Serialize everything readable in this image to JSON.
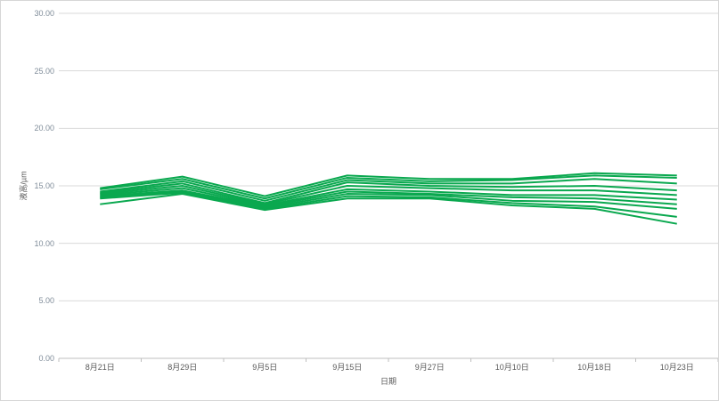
{
  "chart_data": {
    "type": "line",
    "title": "",
    "xlabel": "日期",
    "ylabel": "液高/µm",
    "categories": [
      "8月21日",
      "8月29日",
      "9月5日",
      "9月15日",
      "9月27日",
      "10月10日",
      "10月18日",
      "10月23日"
    ],
    "series": [
      {
        "name": "line-1",
        "values": [
          14.8,
          15.8,
          14.1,
          15.9,
          15.6,
          15.6,
          16.1,
          15.9
        ]
      },
      {
        "name": "line-2",
        "values": [
          14.7,
          15.6,
          13.9,
          15.7,
          15.4,
          15.5,
          15.9,
          15.7
        ]
      },
      {
        "name": "line-3",
        "values": [
          14.5,
          15.4,
          13.7,
          15.5,
          15.2,
          15.2,
          15.6,
          15.2
        ]
      },
      {
        "name": "line-4",
        "values": [
          14.4,
          15.2,
          13.5,
          15.3,
          15.0,
          14.9,
          15.0,
          14.6
        ]
      },
      {
        "name": "line-5",
        "values": [
          14.3,
          15.0,
          13.4,
          15.0,
          14.8,
          14.6,
          14.6,
          14.2
        ]
      },
      {
        "name": "line-6",
        "values": [
          14.2,
          14.8,
          13.3,
          14.7,
          14.5,
          14.2,
          14.2,
          13.8
        ]
      },
      {
        "name": "line-7",
        "values": [
          14.1,
          14.6,
          13.2,
          14.5,
          14.3,
          14.0,
          13.9,
          13.4
        ]
      },
      {
        "name": "line-8",
        "values": [
          14.0,
          14.5,
          13.1,
          14.3,
          14.2,
          13.7,
          13.6,
          13.0
        ]
      },
      {
        "name": "line-9",
        "values": [
          13.9,
          14.4,
          13.0,
          14.1,
          14.0,
          13.5,
          13.2,
          12.3
        ]
      },
      {
        "name": "line-10",
        "values": [
          13.4,
          14.3,
          12.9,
          13.9,
          13.9,
          13.3,
          13.0,
          11.7
        ]
      }
    ],
    "ylim": [
      0,
      30
    ],
    "ytick_step": 5,
    "ytick_labels": [
      "0.00",
      "5.00",
      "10.00",
      "15.00",
      "20.00",
      "25.00",
      "30.00"
    ],
    "grid": true,
    "legend": "none",
    "line_color": "#0aa84f",
    "colors": {
      "gridline": "#d9d9d9",
      "axis_line": "#bfbfbf",
      "y_tick_label": "#7f8c99",
      "x_tick_label": "#595959",
      "border": "#d6d6d6"
    }
  }
}
